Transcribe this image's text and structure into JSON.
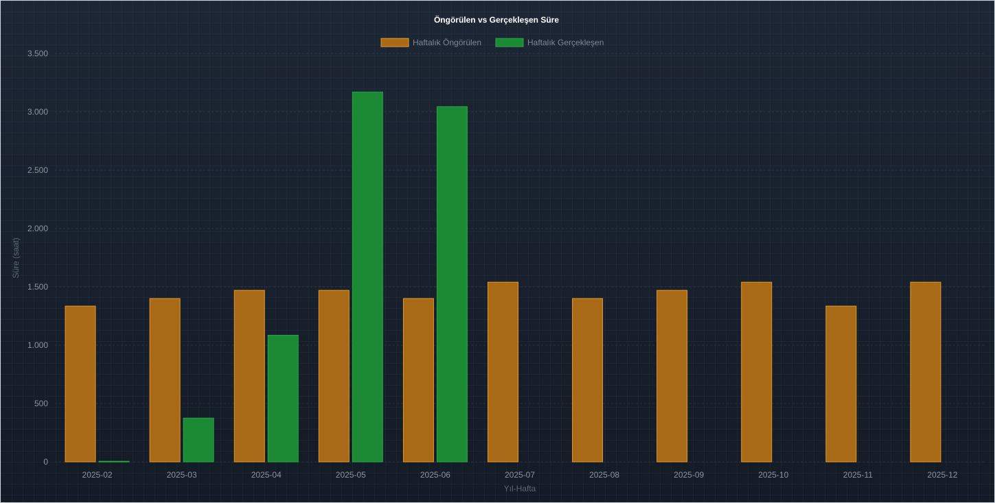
{
  "chart_data": {
    "type": "bar",
    "title": "Öngörülen vs Gerçekleşen Süre",
    "xlabel": "Yıl-Hafta",
    "ylabel": "Süre (saat)",
    "ylim": [
      0,
      3500
    ],
    "yticks": [
      0,
      500,
      1000,
      1500,
      2000,
      2500,
      3000,
      3500
    ],
    "ytick_labels": [
      "0",
      "500",
      "1.000",
      "1.500",
      "2.000",
      "2.500",
      "3.000",
      "3.500"
    ],
    "categories": [
      "2025-02",
      "2025-03",
      "2025-04",
      "2025-05",
      "2025-06",
      "2025-07",
      "2025-08",
      "2025-09",
      "2025-10",
      "2025-11",
      "2025-12"
    ],
    "series": [
      {
        "name": "Haftalık Öngörülen",
        "color": "#a86a17",
        "border": "#e39a2a",
        "values": [
          1335,
          1400,
          1470,
          1470,
          1400,
          1540,
          1400,
          1470,
          1540,
          1335,
          1540
        ]
      },
      {
        "name": "Haftalık Gerçekleşen",
        "color": "#1c8a35",
        "border": "#25a843",
        "values": [
          5,
          375,
          1085,
          3170,
          3045,
          0,
          0,
          0,
          0,
          0,
          0
        ]
      }
    ],
    "grid": true,
    "legend_position": "top-center"
  }
}
